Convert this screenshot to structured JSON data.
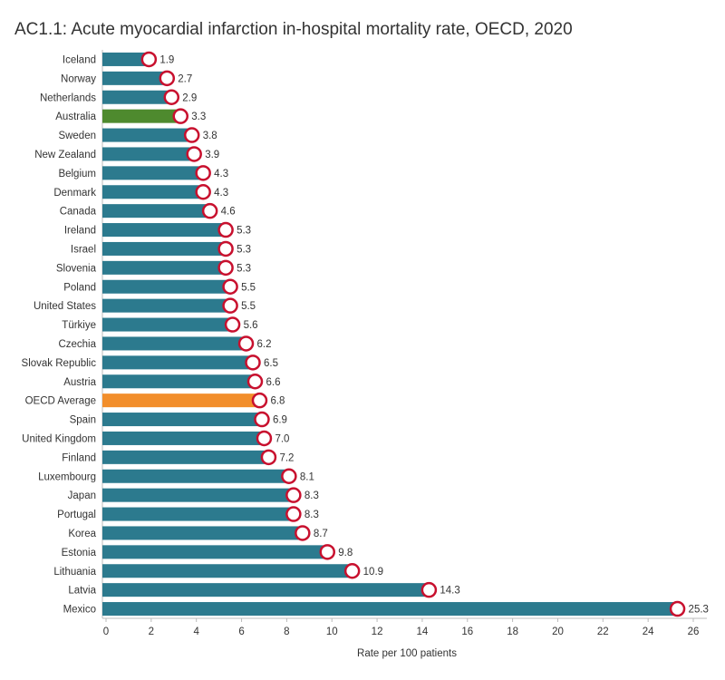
{
  "chart_data": {
    "type": "bar",
    "orientation": "horizontal",
    "title": "AC1.1: Acute myocardial infarction in-hospital mortality rate, OECD, 2020",
    "x_label": "Rate per 100 patients",
    "categories": [
      "Iceland",
      "Norway",
      "Netherlands",
      "Australia",
      "Sweden",
      "New Zealand",
      "Belgium",
      "Denmark",
      "Canada",
      "Ireland",
      "Israel",
      "Slovenia",
      "Poland",
      "United States",
      "Türkiye",
      "Czechia",
      "Slovak Republic",
      "Austria",
      "OECD Average",
      "Spain",
      "United Kingdom",
      "Finland",
      "Luxembourg",
      "Japan",
      "Portugal",
      "Korea",
      "Estonia",
      "Lithuania",
      "Latvia",
      "Mexico"
    ],
    "values": [
      1.9,
      2.7,
      2.9,
      3.3,
      3.8,
      3.9,
      4.3,
      4.3,
      4.6,
      5.3,
      5.3,
      5.3,
      5.5,
      5.5,
      5.6,
      6.2,
      6.5,
      6.6,
      6.8,
      6.9,
      7,
      7.2,
      8.1,
      8.3,
      8.3,
      8.7,
      9.8,
      10.9,
      14.3,
      25.3
    ],
    "value_labels": [
      "1.9",
      "2.7",
      "2.9",
      "3.3",
      "3.8",
      "3.9",
      "4.3",
      "4.3",
      "4.6",
      "5.3",
      "5.3",
      "5.3",
      "5.5",
      "5.5",
      "5.6",
      "6.2",
      "6.5",
      "6.6",
      "6.8",
      "6.9",
      "7.0",
      "7.2",
      "8.1",
      "8.3",
      "8.3",
      "8.7",
      "9.8",
      "10.9",
      "14.3",
      "25.3"
    ],
    "colors": [
      "#2c7a8e",
      "#2c7a8e",
      "#2c7a8e",
      "#4e8a2e",
      "#2c7a8e",
      "#2c7a8e",
      "#2c7a8e",
      "#2c7a8e",
      "#2c7a8e",
      "#2c7a8e",
      "#2c7a8e",
      "#2c7a8e",
      "#2c7a8e",
      "#2c7a8e",
      "#2c7a8e",
      "#2c7a8e",
      "#2c7a8e",
      "#2c7a8e",
      "#f28e2b",
      "#2c7a8e",
      "#2c7a8e",
      "#2c7a8e",
      "#2c7a8e",
      "#2c7a8e",
      "#2c7a8e",
      "#2c7a8e",
      "#2c7a8e",
      "#2c7a8e",
      "#2c7a8e",
      "#2c7a8e"
    ],
    "xlim": [
      0,
      26
    ],
    "xticks": [
      0,
      2,
      4,
      6,
      8,
      10,
      12,
      14,
      16,
      18,
      20,
      22,
      24,
      26
    ],
    "grid": false
  }
}
